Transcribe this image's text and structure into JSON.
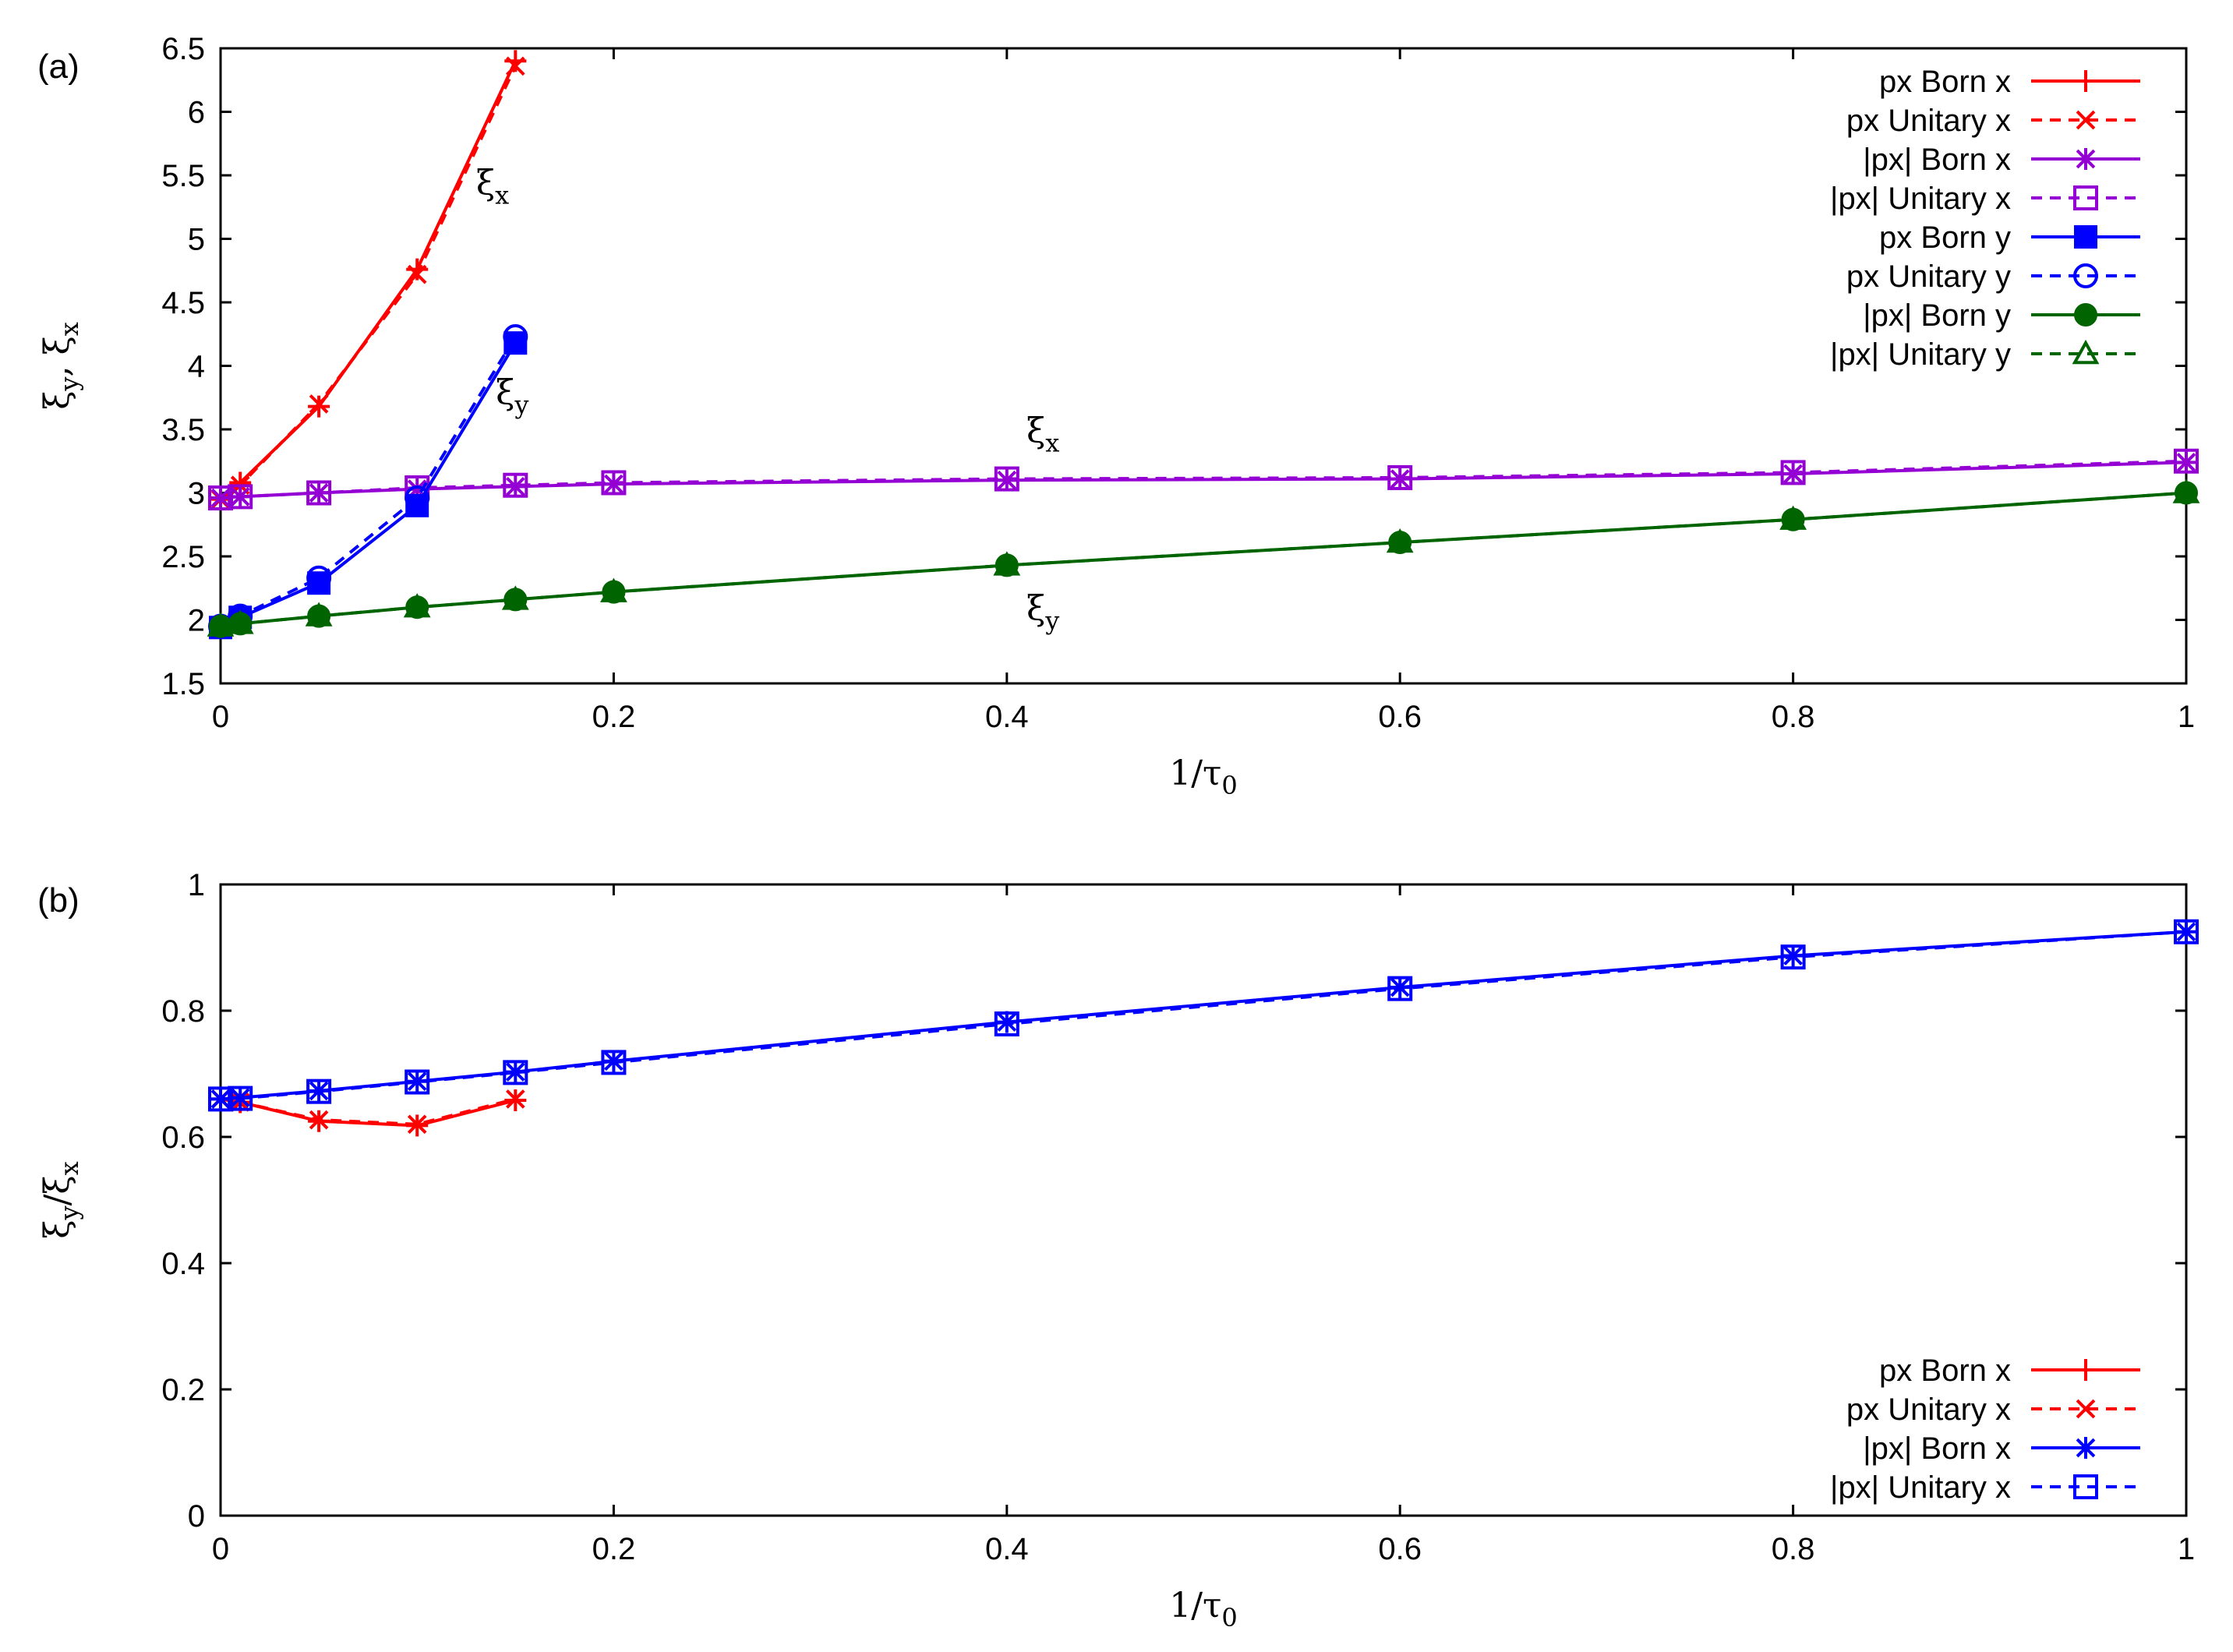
{
  "chart_data": [
    {
      "panel_label": "(a)",
      "type": "line",
      "xlabel": "1/τ0",
      "xlabel_main": "1/τ",
      "xlabel_sub": "0",
      "ylabel": "ξy, ξx",
      "ylabel_parts": {
        "a": "ξ",
        "a_sub": "y",
        "sep": ", ",
        "b": "ξ",
        "b_sub": "x"
      },
      "xlim": [
        0,
        1
      ],
      "ylim": [
        1.5,
        6.5
      ],
      "xticks": [
        0,
        0.2,
        0.4,
        0.6,
        0.8,
        1
      ],
      "xtick_labels": [
        "0",
        "0.2",
        "0.4",
        "0.6",
        "0.8",
        "1"
      ],
      "yticks": [
        1.5,
        2,
        2.5,
        3,
        3.5,
        4,
        4.5,
        5,
        5.5,
        6,
        6.5
      ],
      "ytick_labels": [
        "1.5",
        "2",
        "2.5",
        "3",
        "3.5",
        "4",
        "4.5",
        "5",
        "5.5",
        "6",
        "6.5"
      ],
      "grid": false,
      "legend_position": "top-right",
      "series": [
        {
          "name": "px Born x",
          "color": "#ff0000",
          "dash": "solid",
          "marker": "plus",
          "x": [
            0,
            0.01,
            0.05,
            0.1,
            0.15
          ],
          "y": [
            2.95,
            3.08,
            3.68,
            4.76,
            6.4
          ]
        },
        {
          "name": "px Unitary x",
          "color": "#ff0000",
          "dash": "dashed",
          "marker": "cross",
          "x": [
            0,
            0.01,
            0.05,
            0.1,
            0.15
          ],
          "y": [
            2.95,
            3.06,
            3.7,
            4.72,
            6.36
          ]
        },
        {
          "name": "|px| Born x",
          "color": "#9400d3",
          "dash": "solid",
          "marker": "star",
          "x": [
            0,
            0.01,
            0.05,
            0.1,
            0.15,
            0.2,
            0.4,
            0.6,
            0.8,
            1
          ],
          "y": [
            2.96,
            2.97,
            3.0,
            3.03,
            3.05,
            3.07,
            3.1,
            3.11,
            3.15,
            3.24
          ]
        },
        {
          "name": "|px| Unitary x",
          "color": "#9400d3",
          "dash": "dashed",
          "marker": "open-square",
          "x": [
            0,
            0.01,
            0.05,
            0.1,
            0.15,
            0.2,
            0.4,
            0.6,
            0.8,
            1
          ],
          "y": [
            2.96,
            2.97,
            3.0,
            3.04,
            3.06,
            3.08,
            3.11,
            3.12,
            3.16,
            3.25
          ]
        },
        {
          "name": "px Born y",
          "color": "#0000ff",
          "dash": "solid",
          "marker": "filled-square",
          "x": [
            0,
            0.01,
            0.05,
            0.1,
            0.15
          ],
          "y": [
            1.94,
            2.02,
            2.29,
            2.9,
            4.18
          ]
        },
        {
          "name": "px Unitary y",
          "color": "#0000ff",
          "dash": "dashed",
          "marker": "open-circle",
          "x": [
            0,
            0.01,
            0.05,
            0.1,
            0.15
          ],
          "y": [
            1.95,
            2.03,
            2.33,
            2.96,
            4.23
          ]
        },
        {
          "name": "|px| Born y",
          "color": "#006400",
          "dash": "solid",
          "marker": "filled-circle",
          "x": [
            0,
            0.01,
            0.05,
            0.1,
            0.15,
            0.2,
            0.4,
            0.6,
            0.8,
            1
          ],
          "y": [
            1.95,
            1.97,
            2.03,
            2.1,
            2.16,
            2.22,
            2.43,
            2.61,
            2.79,
            3.0
          ]
        },
        {
          "name": "|px| Unitary y",
          "color": "#006400",
          "dash": "dashed",
          "marker": "open-triangle",
          "x": [
            0,
            0.01,
            0.05,
            0.1,
            0.15,
            0.2,
            0.4,
            0.6,
            0.8,
            1
          ],
          "y": [
            1.95,
            1.97,
            2.03,
            2.1,
            2.16,
            2.22,
            2.43,
            2.61,
            2.79,
            3.0
          ]
        }
      ],
      "annotations": [
        {
          "symbol": "ξ",
          "sub": "x",
          "x": 0.13,
          "y": 5.35
        },
        {
          "symbol": "ξ",
          "sub": "y",
          "x": 0.14,
          "y": 3.7
        },
        {
          "symbol": "ξ",
          "sub": "x",
          "x": 0.41,
          "y": 3.4
        },
        {
          "symbol": "ξ",
          "sub": "y",
          "x": 0.41,
          "y": 2.0
        }
      ]
    },
    {
      "panel_label": "(b)",
      "type": "line",
      "xlabel": "1/τ0",
      "xlabel_main": "1/τ",
      "xlabel_sub": "0",
      "ylabel": "ξy/ξx",
      "ylabel_parts": {
        "a": "ξ",
        "a_sub": "y",
        "sep": "/",
        "b": "ξ",
        "b_sub": "x"
      },
      "xlim": [
        0,
        1
      ],
      "ylim": [
        0,
        1
      ],
      "xticks": [
        0,
        0.2,
        0.4,
        0.6,
        0.8,
        1
      ],
      "xtick_labels": [
        "0",
        "0.2",
        "0.4",
        "0.6",
        "0.8",
        "1"
      ],
      "yticks": [
        0,
        0.2,
        0.4,
        0.6,
        0.8,
        1
      ],
      "ytick_labels": [
        "0",
        "0.2",
        "0.4",
        "0.6",
        "0.8",
        "1"
      ],
      "grid": false,
      "legend_position": "bottom-right",
      "series": [
        {
          "name": "px Born x",
          "color": "#ff0000",
          "dash": "solid",
          "marker": "plus",
          "x": [
            0,
            0.01,
            0.05,
            0.1,
            0.15
          ],
          "y": [
            0.66,
            0.655,
            0.625,
            0.618,
            0.658
          ]
        },
        {
          "name": "px Unitary x",
          "color": "#ff0000",
          "dash": "dashed",
          "marker": "cross",
          "x": [
            0,
            0.01,
            0.05,
            0.1,
            0.15
          ],
          "y": [
            0.66,
            0.655,
            0.627,
            0.62,
            0.66
          ]
        },
        {
          "name": "|px| Born x",
          "color": "#0000ff",
          "dash": "solid",
          "marker": "star",
          "x": [
            0,
            0.01,
            0.05,
            0.1,
            0.15,
            0.2,
            0.4,
            0.6,
            0.8,
            1
          ],
          "y": [
            0.66,
            0.662,
            0.673,
            0.688,
            0.703,
            0.72,
            0.782,
            0.837,
            0.887,
            0.925
          ]
        },
        {
          "name": "|px| Unitary x",
          "color": "#0000ff",
          "dash": "dashed",
          "marker": "open-square",
          "x": [
            0,
            0.01,
            0.05,
            0.1,
            0.15,
            0.2,
            0.4,
            0.6,
            0.8,
            1
          ],
          "y": [
            0.66,
            0.661,
            0.672,
            0.687,
            0.702,
            0.718,
            0.779,
            0.835,
            0.885,
            0.925
          ]
        }
      ],
      "annotations": []
    }
  ]
}
